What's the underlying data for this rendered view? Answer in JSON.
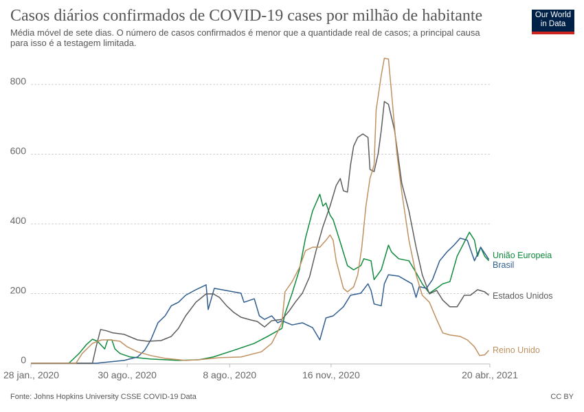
{
  "header": {
    "title": "Casos diários confirmados de COVID-19 cases por milhão de habitante",
    "subtitle": "Média móvel de sete dias. O número de casos confirmados é menor que a quantidade real de casos; a principal causa para isso é a testagem limitada.",
    "logo_line1": "Our World",
    "logo_line2": "in Data"
  },
  "footer": {
    "source": "Fonte: Johns Hopkins University CSSE COVID-19 Data",
    "license": "CC BY"
  },
  "chart_data": {
    "type": "line",
    "title": "Casos diários confirmados de COVID-19 cases por milhão de habitante",
    "xlabel": "",
    "ylabel": "",
    "x_units": "days since 28 jan., 2020",
    "xlim": [
      0,
      448
    ],
    "ylim": [
      0,
      800
    ],
    "grid": true,
    "y_ticks": [
      {
        "value": 0,
        "label": "0"
      },
      {
        "value": 200,
        "label": "200"
      },
      {
        "value": 400,
        "label": "400"
      },
      {
        "value": 600,
        "label": "600"
      },
      {
        "value": 800,
        "label": "800"
      }
    ],
    "x_ticks": [
      {
        "value": 0,
        "label": "28 jan., 2020"
      },
      {
        "value": 94,
        "label": "30 ago., 2020"
      },
      {
        "value": 194,
        "label": "8 ago., 2020"
      },
      {
        "value": 293,
        "label": "16 nov., 2020"
      },
      {
        "value": 448,
        "label": "20 abr., 2021"
      }
    ],
    "legend_placement": "line-end labels (right)",
    "series": [
      {
        "name": "União Europeia",
        "color": "#0f8a3c",
        "label_value": 330,
        "points": [
          [
            0,
            0
          ],
          [
            37,
            0
          ],
          [
            47,
            28
          ],
          [
            54,
            53
          ],
          [
            60,
            69
          ],
          [
            65,
            63
          ],
          [
            72,
            41
          ],
          [
            75,
            67
          ],
          [
            79,
            67
          ],
          [
            82,
            41
          ],
          [
            87,
            28
          ],
          [
            97,
            18
          ],
          [
            117,
            12
          ],
          [
            144,
            8
          ],
          [
            164,
            10
          ],
          [
            178,
            18
          ],
          [
            198,
            37
          ],
          [
            218,
            57
          ],
          [
            231,
            77
          ],
          [
            245,
            100
          ],
          [
            248,
            142
          ],
          [
            255,
            201
          ],
          [
            262,
            268
          ],
          [
            268,
            359
          ],
          [
            275,
            437
          ],
          [
            282,
            485
          ],
          [
            285,
            451
          ],
          [
            288,
            460
          ],
          [
            292,
            425
          ],
          [
            295,
            412
          ],
          [
            302,
            347
          ],
          [
            309,
            280
          ],
          [
            315,
            268
          ],
          [
            322,
            280
          ],
          [
            325,
            300
          ],
          [
            332,
            294
          ],
          [
            335,
            240
          ],
          [
            342,
            268
          ],
          [
            349,
            339
          ],
          [
            352,
            319
          ],
          [
            359,
            300
          ],
          [
            369,
            294
          ],
          [
            376,
            260
          ],
          [
            382,
            228
          ],
          [
            389,
            201
          ],
          [
            396,
            215
          ],
          [
            402,
            228
          ],
          [
            409,
            234
          ],
          [
            416,
            307
          ],
          [
            423,
            347
          ],
          [
            428,
            376
          ],
          [
            433,
            353
          ],
          [
            436,
            307
          ],
          [
            439,
            333
          ],
          [
            443,
            307
          ],
          [
            447,
            294
          ]
        ]
      },
      {
        "name": "Brasil",
        "color": "#2f5d8e",
        "label_value": 283,
        "points": [
          [
            0,
            0
          ],
          [
            64,
            0
          ],
          [
            70,
            2
          ],
          [
            91,
            8
          ],
          [
            104,
            18
          ],
          [
            111,
            37
          ],
          [
            117,
            67
          ],
          [
            124,
            116
          ],
          [
            131,
            136
          ],
          [
            137,
            165
          ],
          [
            144,
            175
          ],
          [
            151,
            195
          ],
          [
            161,
            211
          ],
          [
            171,
            225
          ],
          [
            173,
            154
          ],
          [
            179,
            215
          ],
          [
            205,
            201
          ],
          [
            208,
            175
          ],
          [
            218,
            185
          ],
          [
            223,
            136
          ],
          [
            228,
            126
          ],
          [
            235,
            136
          ],
          [
            241,
            116
          ],
          [
            245,
            122
          ],
          [
            255,
            110
          ],
          [
            265,
            116
          ],
          [
            275,
            102
          ],
          [
            282,
            67
          ],
          [
            288,
            130
          ],
          [
            295,
            136
          ],
          [
            305,
            162
          ],
          [
            312,
            195
          ],
          [
            322,
            201
          ],
          [
            329,
            228
          ],
          [
            332,
            209
          ],
          [
            335,
            170
          ],
          [
            342,
            165
          ],
          [
            345,
            228
          ],
          [
            349,
            254
          ],
          [
            359,
            250
          ],
          [
            366,
            238
          ],
          [
            372,
            228
          ],
          [
            376,
            189
          ],
          [
            379,
            220
          ],
          [
            386,
            215
          ],
          [
            392,
            240
          ],
          [
            399,
            294
          ],
          [
            406,
            319
          ],
          [
            413,
            339
          ],
          [
            419,
            359
          ],
          [
            426,
            353
          ],
          [
            433,
            294
          ],
          [
            439,
            333
          ],
          [
            445,
            307
          ],
          [
            447,
            298
          ]
        ]
      },
      {
        "name": "Estados Unidos",
        "color": "#5b5b5b",
        "label_value": 195,
        "points": [
          [
            0,
            0
          ],
          [
            60,
            0
          ],
          [
            64,
            51
          ],
          [
            68,
            97
          ],
          [
            74,
            93
          ],
          [
            80,
            87
          ],
          [
            91,
            83
          ],
          [
            104,
            67
          ],
          [
            114,
            63
          ],
          [
            127,
            65
          ],
          [
            137,
            77
          ],
          [
            144,
            100
          ],
          [
            151,
            136
          ],
          [
            161,
            175
          ],
          [
            171,
            199
          ],
          [
            178,
            199
          ],
          [
            184,
            189
          ],
          [
            191,
            165
          ],
          [
            198,
            146
          ],
          [
            205,
            132
          ],
          [
            215,
            124
          ],
          [
            221,
            120
          ],
          [
            228,
            104
          ],
          [
            235,
            122
          ],
          [
            245,
            126
          ],
          [
            252,
            150
          ],
          [
            258,
            175
          ],
          [
            265,
            201
          ],
          [
            272,
            248
          ],
          [
            278,
            319
          ],
          [
            285,
            392
          ],
          [
            292,
            451
          ],
          [
            298,
            510
          ],
          [
            302,
            530
          ],
          [
            305,
            495
          ],
          [
            309,
            491
          ],
          [
            312,
            569
          ],
          [
            315,
            623
          ],
          [
            319,
            648
          ],
          [
            324,
            658
          ],
          [
            329,
            648
          ],
          [
            331,
            556
          ],
          [
            335,
            550
          ],
          [
            339,
            603
          ],
          [
            342,
            668
          ],
          [
            345,
            751
          ],
          [
            349,
            743
          ],
          [
            355,
            668
          ],
          [
            362,
            516
          ],
          [
            369,
            437
          ],
          [
            376,
            333
          ],
          [
            382,
            254
          ],
          [
            389,
            199
          ],
          [
            396,
            209
          ],
          [
            402,
            181
          ],
          [
            409,
            162
          ],
          [
            416,
            162
          ],
          [
            423,
            195
          ],
          [
            429,
            195
          ],
          [
            436,
            211
          ],
          [
            443,
            205
          ],
          [
            447,
            195
          ]
        ]
      },
      {
        "name": "Reino Unido",
        "color": "#bf9060",
        "label_value": 37,
        "points": [
          [
            0,
            0
          ],
          [
            44,
            0
          ],
          [
            50,
            28
          ],
          [
            60,
            57
          ],
          [
            69,
            67
          ],
          [
            77,
            67
          ],
          [
            87,
            63
          ],
          [
            94,
            47
          ],
          [
            104,
            33
          ],
          [
            117,
            22
          ],
          [
            131,
            14
          ],
          [
            151,
            8
          ],
          [
            164,
            10
          ],
          [
            184,
            16
          ],
          [
            205,
            18
          ],
          [
            225,
            33
          ],
          [
            235,
            57
          ],
          [
            241,
            91
          ],
          [
            245,
            116
          ],
          [
            248,
            205
          ],
          [
            255,
            234
          ],
          [
            262,
            274
          ],
          [
            268,
            323
          ],
          [
            275,
            333
          ],
          [
            282,
            333
          ],
          [
            288,
            353
          ],
          [
            292,
            368
          ],
          [
            295,
            353
          ],
          [
            298,
            294
          ],
          [
            305,
            215
          ],
          [
            309,
            205
          ],
          [
            315,
            219
          ],
          [
            319,
            254
          ],
          [
            323,
            333
          ],
          [
            327,
            451
          ],
          [
            331,
            530
          ],
          [
            335,
            569
          ],
          [
            337,
            727
          ],
          [
            342,
            826
          ],
          [
            345,
            875
          ],
          [
            349,
            873
          ],
          [
            352,
            776
          ],
          [
            357,
            609
          ],
          [
            362,
            491
          ],
          [
            369,
            353
          ],
          [
            376,
            254
          ],
          [
            382,
            195
          ],
          [
            389,
            175
          ],
          [
            396,
            126
          ],
          [
            402,
            87
          ],
          [
            409,
            81
          ],
          [
            419,
            77
          ],
          [
            426,
            67
          ],
          [
            433,
            47
          ],
          [
            438,
            22
          ],
          [
            443,
            24
          ],
          [
            447,
            37
          ]
        ]
      }
    ]
  }
}
